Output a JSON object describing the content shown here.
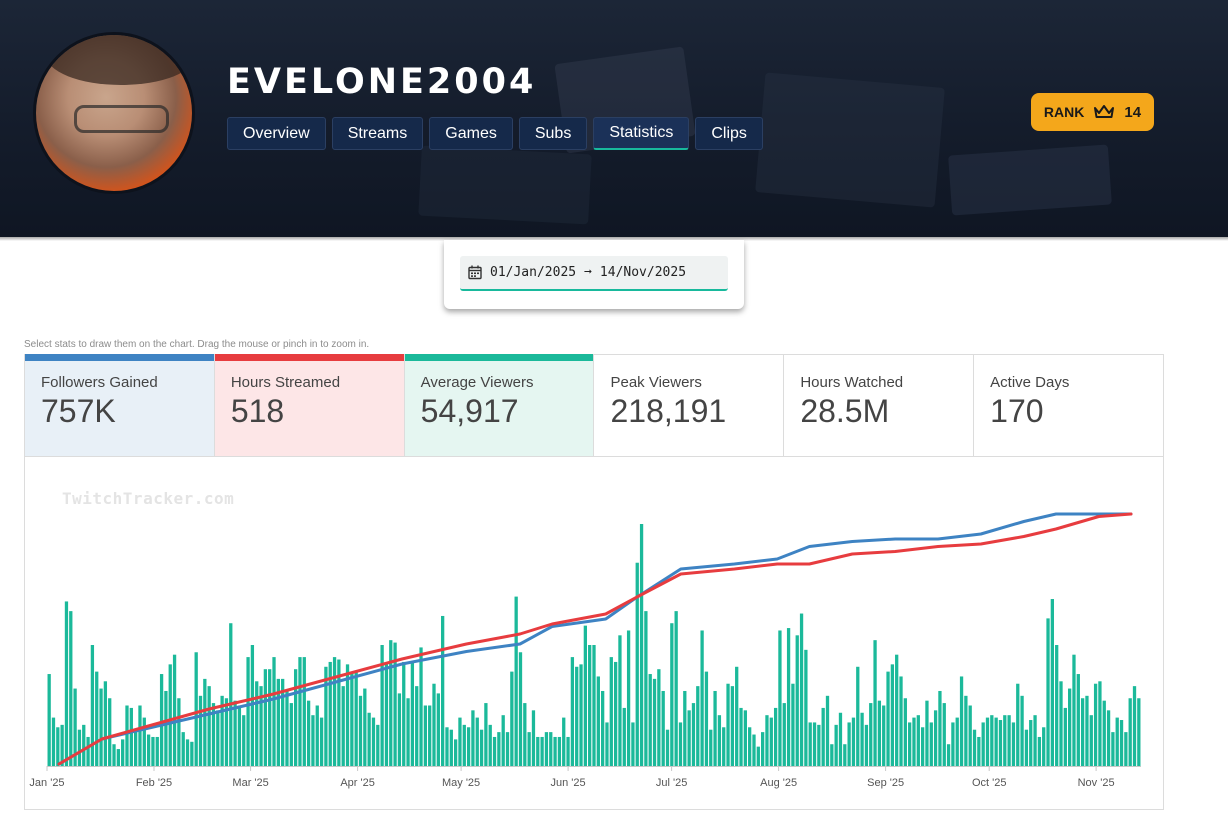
{
  "channel": {
    "name": "EVELONE2004"
  },
  "tabs": [
    {
      "label": "Overview",
      "active": false
    },
    {
      "label": "Streams",
      "active": false
    },
    {
      "label": "Games",
      "active": false
    },
    {
      "label": "Subs",
      "active": false
    },
    {
      "label": "Statistics",
      "active": true
    },
    {
      "label": "Clips",
      "active": false
    }
  ],
  "rank": {
    "label": "RANK",
    "value": "14",
    "icon": "crown-icon"
  },
  "date_range": {
    "start": "01/Jan/2025",
    "arrow": "➞",
    "end": "14/Nov/2025",
    "icon": "calendar-icon"
  },
  "hint": "Select stats to draw them on the chart. Drag the mouse or pinch in to zoom in.",
  "stats": [
    {
      "label": "Followers Gained",
      "value": "757K",
      "color": "#3e83c3",
      "selected": true
    },
    {
      "label": "Hours Streamed",
      "value": "518",
      "color": "#e73c3f",
      "selected": true
    },
    {
      "label": "Average Viewers",
      "value": "54,917",
      "color": "#1bb99a",
      "selected": true
    },
    {
      "label": "Peak Viewers",
      "value": "218,191",
      "selected": false
    },
    {
      "label": "Hours Watched",
      "value": "28.5M",
      "selected": false
    },
    {
      "label": "Active Days",
      "value": "170",
      "selected": false
    }
  ],
  "watermark": "TwitchTracker.com",
  "chart_data": {
    "type": "bar",
    "x_tick_labels": [
      "Jan '25",
      "Feb '25",
      "Mar '25",
      "Apr '25",
      "May '25",
      "Jun '25",
      "Jul '25",
      "Aug '25",
      "Sep '25",
      "Oct '25",
      "Nov '25"
    ],
    "x_range": [
      "2025-01-01",
      "2025-11-14"
    ],
    "grid": false,
    "legend": "none",
    "series": [
      {
        "name": "Average Viewers",
        "kind": "bar",
        "color": "#1bb99a",
        "relative_values": [
          0.38,
          0.2,
          0.16,
          0.17,
          0.68,
          0.64,
          0.32,
          0.15,
          0.17,
          0.12,
          0.5,
          0.39,
          0.32,
          0.35,
          0.28,
          0.09,
          0.07,
          0.11,
          0.25,
          0.24,
          0.14,
          0.25,
          0.2,
          0.13,
          0.12,
          0.12,
          0.38,
          0.31,
          0.42,
          0.46,
          0.28,
          0.14,
          0.11,
          0.1,
          0.47,
          0.29,
          0.36,
          0.33,
          0.26,
          0.23,
          0.29,
          0.28,
          0.59,
          0.27,
          0.25,
          0.21,
          0.45,
          0.5,
          0.35,
          0.33,
          0.4,
          0.4,
          0.45,
          0.36,
          0.36,
          0.31,
          0.26,
          0.4,
          0.45,
          0.45,
          0.27,
          0.21,
          0.25,
          0.2,
          0.41,
          0.43,
          0.45,
          0.44,
          0.33,
          0.42,
          0.39,
          0.39,
          0.29,
          0.32,
          0.22,
          0.2,
          0.17,
          0.5,
          0.42,
          0.52,
          0.51,
          0.3,
          0.43,
          0.28,
          0.43,
          0.33,
          0.49,
          0.25,
          0.25,
          0.34,
          0.3,
          0.62,
          0.16,
          0.15,
          0.11,
          0.2,
          0.17,
          0.16,
          0.23,
          0.2,
          0.15,
          0.26,
          0.17,
          0.12,
          0.14,
          0.21,
          0.14,
          0.39,
          0.7,
          0.47,
          0.26,
          0.14,
          0.23,
          0.12,
          0.12,
          0.14,
          0.14,
          0.12,
          0.12,
          0.2,
          0.12,
          0.45,
          0.41,
          0.42,
          0.58,
          0.5,
          0.5,
          0.37,
          0.31,
          0.18,
          0.45,
          0.43,
          0.54,
          0.24,
          0.56,
          0.18,
          0.84,
          1.0,
          0.64,
          0.38,
          0.36,
          0.4,
          0.31,
          0.15,
          0.59,
          0.64,
          0.18,
          0.31,
          0.23,
          0.26,
          0.33,
          0.56,
          0.39,
          0.15,
          0.31,
          0.21,
          0.16,
          0.34,
          0.33,
          0.41,
          0.24,
          0.23,
          0.16,
          0.13,
          0.08,
          0.14,
          0.21,
          0.2,
          0.24,
          0.56,
          0.26,
          0.57,
          0.34,
          0.54,
          0.63,
          0.48,
          0.18,
          0.18,
          0.17,
          0.24,
          0.29,
          0.09,
          0.17,
          0.22,
          0.09,
          0.18,
          0.2,
          0.41,
          0.22,
          0.17,
          0.26,
          0.52,
          0.27,
          0.25,
          0.39,
          0.42,
          0.46,
          0.37,
          0.28,
          0.18,
          0.2,
          0.21,
          0.16,
          0.27,
          0.18,
          0.23,
          0.31,
          0.26,
          0.09,
          0.18,
          0.2,
          0.37,
          0.29,
          0.25,
          0.15,
          0.12,
          0.18,
          0.2,
          0.21,
          0.2,
          0.19,
          0.21,
          0.21,
          0.18,
          0.34,
          0.29,
          0.15,
          0.19,
          0.21,
          0.12,
          0.16,
          0.61,
          0.69,
          0.5,
          0.35,
          0.24,
          0.32,
          0.46,
          0.38,
          0.28,
          0.29,
          0.21,
          0.34,
          0.35,
          0.27,
          0.23,
          0.14,
          0.2,
          0.19,
          0.14,
          0.28,
          0.33,
          0.28
        ]
      },
      {
        "name": "Hours Streamed",
        "kind": "line",
        "cumulative": true,
        "color": "#e73c3f",
        "relative_points": [
          [
            0,
            0.0
          ],
          [
            0.04,
            0.1
          ],
          [
            0.09,
            0.16
          ],
          [
            0.14,
            0.22
          ],
          [
            0.2,
            0.28
          ],
          [
            0.26,
            0.35
          ],
          [
            0.32,
            0.42
          ],
          [
            0.38,
            0.48
          ],
          [
            0.43,
            0.52
          ],
          [
            0.46,
            0.56
          ],
          [
            0.51,
            0.6
          ],
          [
            0.54,
            0.67
          ],
          [
            0.58,
            0.76
          ],
          [
            0.63,
            0.78
          ],
          [
            0.67,
            0.8
          ],
          [
            0.7,
            0.8
          ],
          [
            0.74,
            0.84
          ],
          [
            0.78,
            0.85
          ],
          [
            0.82,
            0.87
          ],
          [
            0.86,
            0.88
          ],
          [
            0.9,
            0.91
          ],
          [
            0.93,
            0.94
          ],
          [
            0.97,
            0.99
          ],
          [
            1.0,
            1.0
          ]
        ]
      },
      {
        "name": "Followers Gained",
        "kind": "line",
        "cumulative": true,
        "color": "#3e83c3",
        "relative_points": [
          [
            0,
            0.0
          ],
          [
            0.04,
            0.1
          ],
          [
            0.09,
            0.15
          ],
          [
            0.14,
            0.2
          ],
          [
            0.2,
            0.26
          ],
          [
            0.26,
            0.33
          ],
          [
            0.32,
            0.4
          ],
          [
            0.38,
            0.45
          ],
          [
            0.43,
            0.48
          ],
          [
            0.46,
            0.55
          ],
          [
            0.51,
            0.58
          ],
          [
            0.54,
            0.67
          ],
          [
            0.58,
            0.78
          ],
          [
            0.63,
            0.8
          ],
          [
            0.67,
            0.82
          ],
          [
            0.7,
            0.87
          ],
          [
            0.74,
            0.89
          ],
          [
            0.78,
            0.9
          ],
          [
            0.82,
            0.9
          ],
          [
            0.86,
            0.92
          ],
          [
            0.9,
            0.97
          ],
          [
            0.93,
            1.0
          ],
          [
            1.0,
            1.0
          ]
        ]
      }
    ]
  }
}
